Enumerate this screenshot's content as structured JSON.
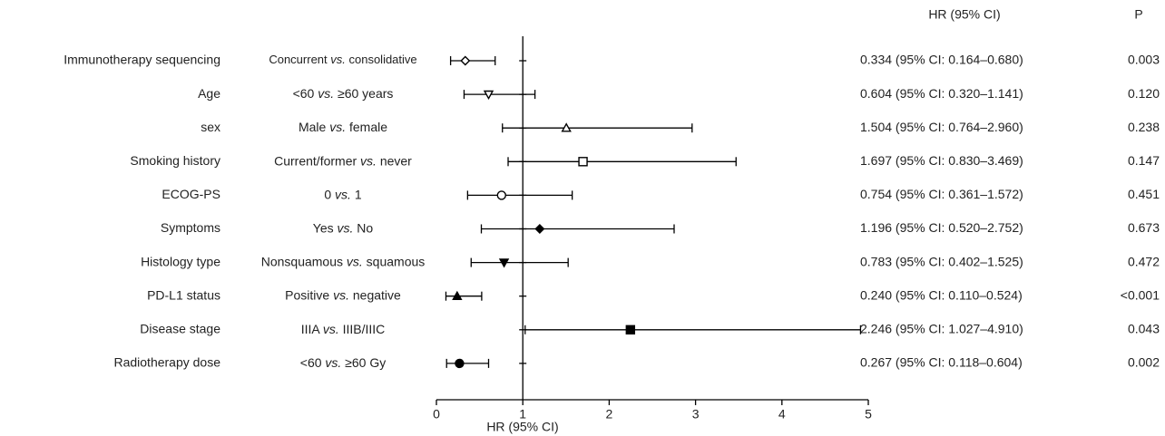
{
  "chart_data": {
    "type": "forest",
    "column_headers": {
      "estimate": "HR (95% CI)",
      "p": "P"
    },
    "xlabel": "HR (95% CI)",
    "xlim": [
      0,
      5
    ],
    "xticks": [
      0,
      1,
      2,
      3,
      4,
      5
    ],
    "reference_line": 1,
    "color": "#000000",
    "variables": [
      "Immunotherapy sequencing",
      "Age",
      "sex",
      "Smoking history",
      "ECOG-PS",
      "Symptoms",
      "Histology type",
      "PD-L1 status",
      "Disease stage",
      "Radiotherapy dose"
    ],
    "comparisons": [
      "Concurrent vs. consolidative",
      "<60 vs. ≥60 years",
      "Male vs. female",
      "Current/former vs. never",
      "0 vs. 1",
      "Yes vs. No",
      "Nonsquamous vs. squamous",
      "Positive vs. negative",
      "IIIA vs. IIIB/IIIC",
      "<60 vs. ≥60 Gy"
    ],
    "values": [
      0.334,
      0.604,
      1.504,
      1.697,
      0.754,
      1.196,
      0.783,
      0.24,
      2.246,
      0.267
    ],
    "lower": [
      0.164,
      0.32,
      0.764,
      0.83,
      0.361,
      0.52,
      0.402,
      0.11,
      1.027,
      0.118
    ],
    "upper": [
      0.68,
      1.141,
      2.96,
      3.469,
      1.572,
      2.752,
      1.525,
      0.524,
      4.91,
      0.604
    ],
    "value_labels": [
      "0.334 (95% CI: 0.164–0.680)",
      "0.604 (95% CI: 0.320–1.141)",
      "1.504 (95% CI: 0.764–2.960)",
      "1.697 (95% CI: 0.830–3.469)",
      "0.754 (95% CI: 0.361–1.572)",
      "1.196 (95% CI: 0.520–2.752)",
      "0.783 (95% CI: 0.402–1.525)",
      "0.240 (95% CI: 0.110–0.524)",
      "2.246 (95% CI: 1.027–4.910)",
      "0.267 (95% CI: 0.118–0.604)"
    ],
    "p_values": [
      "0.003",
      "0.120",
      "0.238",
      "0.147",
      "0.451",
      "0.673",
      "0.472",
      "<0.001",
      "0.043",
      "0.002"
    ],
    "markers": [
      "diamond-open",
      "triangle-down-open",
      "triangle-up-open",
      "square-open",
      "circle-open",
      "diamond-filled",
      "triangle-down-filled",
      "triangle-up-filled",
      "square-filled",
      "circle-filled"
    ]
  }
}
